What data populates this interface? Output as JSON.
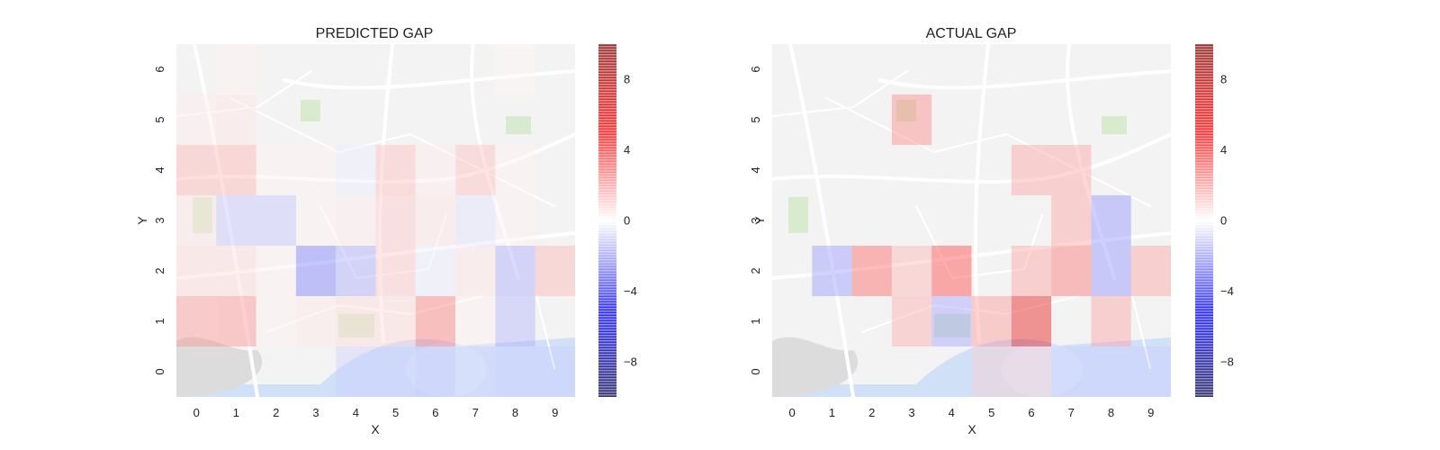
{
  "chart_data": [
    {
      "type": "heatmap",
      "title": "PREDICTED GAP",
      "xlabel": "X",
      "ylabel": "Y",
      "x": [
        0,
        1,
        2,
        3,
        4,
        5,
        6,
        7,
        8,
        9
      ],
      "y": [
        0,
        1,
        2,
        3,
        4,
        5,
        6
      ],
      "clim": [
        -10,
        10
      ],
      "colorbar_ticks": [
        -8,
        -4,
        0,
        4,
        8
      ],
      "colormap": "seismic",
      "background": "street map",
      "grid": false,
      "values": [
        [
          0,
          0,
          0,
          0,
          -1.0,
          -1.0,
          -1.2,
          -0.8,
          -1.0,
          -1.0
        ],
        [
          2.2,
          2.4,
          0.3,
          0.5,
          0.8,
          0.8,
          2.8,
          0.3,
          -1.6,
          0
        ],
        [
          0.8,
          0.8,
          0.3,
          -2.8,
          -1.8,
          1.2,
          -0.4,
          0.6,
          -1.8,
          1.6
        ],
        [
          0.6,
          -1.3,
          -1.3,
          0.3,
          0.4,
          1.2,
          0.6,
          -0.6,
          0.3,
          0
        ],
        [
          1.6,
          1.6,
          0.3,
          0.3,
          -0.4,
          1.4,
          0.4,
          1.4,
          0.3,
          0
        ],
        [
          0.4,
          0.6,
          0,
          0,
          0,
          0,
          0,
          0,
          0,
          0
        ],
        [
          0,
          0.3,
          0,
          0,
          0,
          0,
          0,
          0,
          0.2,
          0
        ]
      ]
    },
    {
      "type": "heatmap",
      "title": "ACTUAL GAP",
      "xlabel": "X",
      "ylabel": "Y",
      "x": [
        0,
        1,
        2,
        3,
        4,
        5,
        6,
        7,
        8,
        9
      ],
      "y": [
        0,
        1,
        2,
        3,
        4,
        5,
        6
      ],
      "clim": [
        -10,
        10
      ],
      "colorbar_ticks": [
        -8,
        -4,
        0,
        4,
        8
      ],
      "colormap": "seismic",
      "background": "street map",
      "grid": false,
      "values": [
        [
          0,
          0,
          0,
          0,
          0,
          1.0,
          1.0,
          -1.0,
          -1.0,
          -1.0
        ],
        [
          0,
          0,
          0,
          1.8,
          -2.0,
          2.2,
          6.0,
          0,
          2.0,
          0
        ],
        [
          0,
          -2.2,
          3.4,
          1.6,
          4.0,
          0,
          2.0,
          3.0,
          -2.4,
          2.0
        ],
        [
          0,
          0,
          0,
          0,
          0,
          0,
          0,
          2.0,
          -2.4,
          0
        ],
        [
          0,
          0,
          0,
          0,
          0,
          0,
          2.0,
          2.0,
          0,
          0
        ],
        [
          0,
          0,
          0,
          2.6,
          0,
          0,
          0,
          0,
          0,
          0
        ],
        [
          0,
          0,
          0,
          0,
          0,
          0,
          0,
          0,
          0,
          0
        ]
      ]
    }
  ]
}
